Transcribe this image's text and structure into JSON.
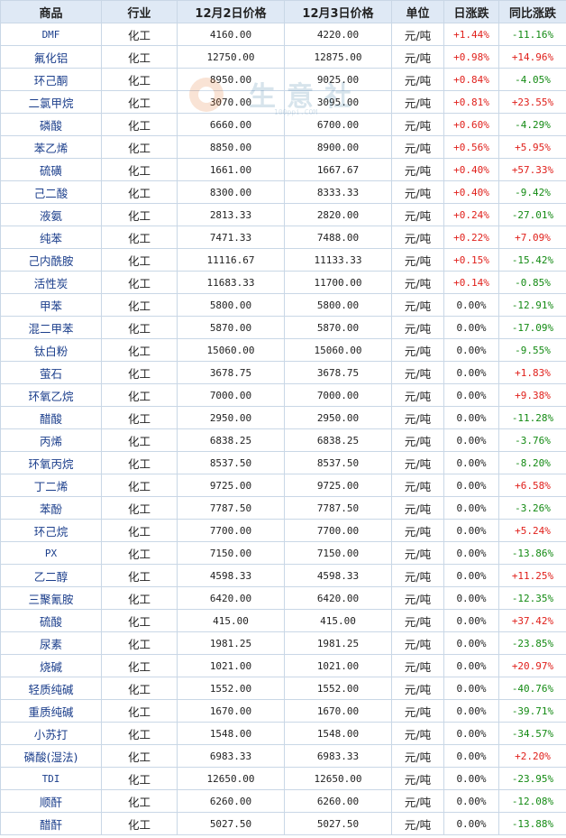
{
  "headers": [
    "商品",
    "行业",
    "12月2日价格",
    "12月3日价格",
    "单位",
    "日涨跌",
    "同比涨跌"
  ],
  "watermark": {
    "text": "生意社",
    "url": "100ppi.COM"
  },
  "colors": {
    "up": "#e0201b",
    "down": "#138a13",
    "header_bg": "#dfe9f5",
    "link": "#1c3f8c"
  },
  "rows": [
    {
      "name": "DMF",
      "industry": "化工",
      "price_dec2": "4160.00",
      "price_dec3": "4220.00",
      "unit": "元/吨",
      "daily_change": "+1.44%",
      "yoy_change": "-11.16%"
    },
    {
      "name": "氟化铝",
      "industry": "化工",
      "price_dec2": "12750.00",
      "price_dec3": "12875.00",
      "unit": "元/吨",
      "daily_change": "+0.98%",
      "yoy_change": "+14.96%"
    },
    {
      "name": "环己酮",
      "industry": "化工",
      "price_dec2": "8950.00",
      "price_dec3": "9025.00",
      "unit": "元/吨",
      "daily_change": "+0.84%",
      "yoy_change": "-4.05%"
    },
    {
      "name": "二氯甲烷",
      "industry": "化工",
      "price_dec2": "3070.00",
      "price_dec3": "3095.00",
      "unit": "元/吨",
      "daily_change": "+0.81%",
      "yoy_change": "+23.55%"
    },
    {
      "name": "磷酸",
      "industry": "化工",
      "price_dec2": "6660.00",
      "price_dec3": "6700.00",
      "unit": "元/吨",
      "daily_change": "+0.60%",
      "yoy_change": "-4.29%"
    },
    {
      "name": "苯乙烯",
      "industry": "化工",
      "price_dec2": "8850.00",
      "price_dec3": "8900.00",
      "unit": "元/吨",
      "daily_change": "+0.56%",
      "yoy_change": "+5.95%"
    },
    {
      "name": "硫磺",
      "industry": "化工",
      "price_dec2": "1661.00",
      "price_dec3": "1667.67",
      "unit": "元/吨",
      "daily_change": "+0.40%",
      "yoy_change": "+57.33%"
    },
    {
      "name": "己二酸",
      "industry": "化工",
      "price_dec2": "8300.00",
      "price_dec3": "8333.33",
      "unit": "元/吨",
      "daily_change": "+0.40%",
      "yoy_change": "-9.42%"
    },
    {
      "name": "液氨",
      "industry": "化工",
      "price_dec2": "2813.33",
      "price_dec3": "2820.00",
      "unit": "元/吨",
      "daily_change": "+0.24%",
      "yoy_change": "-27.01%"
    },
    {
      "name": "纯苯",
      "industry": "化工",
      "price_dec2": "7471.33",
      "price_dec3": "7488.00",
      "unit": "元/吨",
      "daily_change": "+0.22%",
      "yoy_change": "+7.09%"
    },
    {
      "name": "己内酰胺",
      "industry": "化工",
      "price_dec2": "11116.67",
      "price_dec3": "11133.33",
      "unit": "元/吨",
      "daily_change": "+0.15%",
      "yoy_change": "-15.42%"
    },
    {
      "name": "活性炭",
      "industry": "化工",
      "price_dec2": "11683.33",
      "price_dec3": "11700.00",
      "unit": "元/吨",
      "daily_change": "+0.14%",
      "yoy_change": "-0.85%"
    },
    {
      "name": "甲苯",
      "industry": "化工",
      "price_dec2": "5800.00",
      "price_dec3": "5800.00",
      "unit": "元/吨",
      "daily_change": "0.00%",
      "yoy_change": "-12.91%"
    },
    {
      "name": "混二甲苯",
      "industry": "化工",
      "price_dec2": "5870.00",
      "price_dec3": "5870.00",
      "unit": "元/吨",
      "daily_change": "0.00%",
      "yoy_change": "-17.09%"
    },
    {
      "name": "钛白粉",
      "industry": "化工",
      "price_dec2": "15060.00",
      "price_dec3": "15060.00",
      "unit": "元/吨",
      "daily_change": "0.00%",
      "yoy_change": "-9.55%"
    },
    {
      "name": "萤石",
      "industry": "化工",
      "price_dec2": "3678.75",
      "price_dec3": "3678.75",
      "unit": "元/吨",
      "daily_change": "0.00%",
      "yoy_change": "+1.83%"
    },
    {
      "name": "环氧乙烷",
      "industry": "化工",
      "price_dec2": "7000.00",
      "price_dec3": "7000.00",
      "unit": "元/吨",
      "daily_change": "0.00%",
      "yoy_change": "+9.38%"
    },
    {
      "name": "醋酸",
      "industry": "化工",
      "price_dec2": "2950.00",
      "price_dec3": "2950.00",
      "unit": "元/吨",
      "daily_change": "0.00%",
      "yoy_change": "-11.28%"
    },
    {
      "name": "丙烯",
      "industry": "化工",
      "price_dec2": "6838.25",
      "price_dec3": "6838.25",
      "unit": "元/吨",
      "daily_change": "0.00%",
      "yoy_change": "-3.76%"
    },
    {
      "name": "环氧丙烷",
      "industry": "化工",
      "price_dec2": "8537.50",
      "price_dec3": "8537.50",
      "unit": "元/吨",
      "daily_change": "0.00%",
      "yoy_change": "-8.20%"
    },
    {
      "name": "丁二烯",
      "industry": "化工",
      "price_dec2": "9725.00",
      "price_dec3": "9725.00",
      "unit": "元/吨",
      "daily_change": "0.00%",
      "yoy_change": "+6.58%"
    },
    {
      "name": "苯酚",
      "industry": "化工",
      "price_dec2": "7787.50",
      "price_dec3": "7787.50",
      "unit": "元/吨",
      "daily_change": "0.00%",
      "yoy_change": "-3.26%"
    },
    {
      "name": "环己烷",
      "industry": "化工",
      "price_dec2": "7700.00",
      "price_dec3": "7700.00",
      "unit": "元/吨",
      "daily_change": "0.00%",
      "yoy_change": "+5.24%"
    },
    {
      "name": "PX",
      "industry": "化工",
      "price_dec2": "7150.00",
      "price_dec3": "7150.00",
      "unit": "元/吨",
      "daily_change": "0.00%",
      "yoy_change": "-13.86%"
    },
    {
      "name": "乙二醇",
      "industry": "化工",
      "price_dec2": "4598.33",
      "price_dec3": "4598.33",
      "unit": "元/吨",
      "daily_change": "0.00%",
      "yoy_change": "+11.25%"
    },
    {
      "name": "三聚氰胺",
      "industry": "化工",
      "price_dec2": "6420.00",
      "price_dec3": "6420.00",
      "unit": "元/吨",
      "daily_change": "0.00%",
      "yoy_change": "-12.35%"
    },
    {
      "name": "硫酸",
      "industry": "化工",
      "price_dec2": "415.00",
      "price_dec3": "415.00",
      "unit": "元/吨",
      "daily_change": "0.00%",
      "yoy_change": "+37.42%"
    },
    {
      "name": "尿素",
      "industry": "化工",
      "price_dec2": "1981.25",
      "price_dec3": "1981.25",
      "unit": "元/吨",
      "daily_change": "0.00%",
      "yoy_change": "-23.85%"
    },
    {
      "name": "烧碱",
      "industry": "化工",
      "price_dec2": "1021.00",
      "price_dec3": "1021.00",
      "unit": "元/吨",
      "daily_change": "0.00%",
      "yoy_change": "+20.97%"
    },
    {
      "name": "轻质纯碱",
      "industry": "化工",
      "price_dec2": "1552.00",
      "price_dec3": "1552.00",
      "unit": "元/吨",
      "daily_change": "0.00%",
      "yoy_change": "-40.76%"
    },
    {
      "name": "重质纯碱",
      "industry": "化工",
      "price_dec2": "1670.00",
      "price_dec3": "1670.00",
      "unit": "元/吨",
      "daily_change": "0.00%",
      "yoy_change": "-39.71%"
    },
    {
      "name": "小苏打",
      "industry": "化工",
      "price_dec2": "1548.00",
      "price_dec3": "1548.00",
      "unit": "元/吨",
      "daily_change": "0.00%",
      "yoy_change": "-34.57%"
    },
    {
      "name": "磷酸(湿法)",
      "industry": "化工",
      "price_dec2": "6983.33",
      "price_dec3": "6983.33",
      "unit": "元/吨",
      "daily_change": "0.00%",
      "yoy_change": "+2.20%"
    },
    {
      "name": "TDI",
      "industry": "化工",
      "price_dec2": "12650.00",
      "price_dec3": "12650.00",
      "unit": "元/吨",
      "daily_change": "0.00%",
      "yoy_change": "-23.95%"
    },
    {
      "name": "顺酐",
      "industry": "化工",
      "price_dec2": "6260.00",
      "price_dec3": "6260.00",
      "unit": "元/吨",
      "daily_change": "0.00%",
      "yoy_change": "-12.08%"
    },
    {
      "name": "醋酐",
      "industry": "化工",
      "price_dec2": "5027.50",
      "price_dec3": "5027.50",
      "unit": "元/吨",
      "daily_change": "0.00%",
      "yoy_change": "-13.88%"
    }
  ]
}
